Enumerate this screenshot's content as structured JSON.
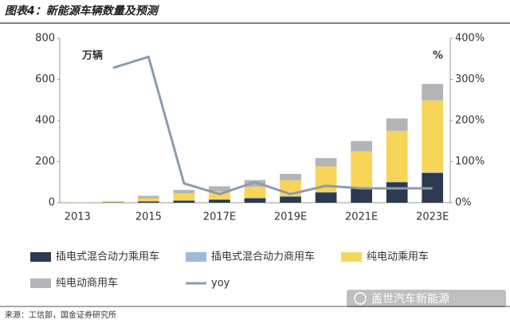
{
  "chart_data": {
    "type": "bar",
    "title": "图表4：新能源车辆数量及预测",
    "y_unit": "万辆",
    "y2_unit": "%",
    "source": "来源：工信部，国金证券研究所",
    "watermark": "盖世汽车新能源",
    "categories": [
      "2013",
      null,
      "2015",
      null,
      "2017E",
      null,
      "2019E",
      null,
      "2021E",
      null,
      "2023E"
    ],
    "stacked": true,
    "series": [
      {
        "name": "插电式混合动力乘用车",
        "color": "#2b3a4e",
        "values": [
          0.4,
          1.5,
          6,
          10,
          15,
          22,
          30,
          50,
          70,
          100,
          145
        ]
      },
      {
        "name": "插电式混合动力商用车",
        "color": "#9bbbd9",
        "values": [
          0.1,
          0.3,
          0.5,
          0.5,
          1,
          1,
          1,
          2,
          2,
          2,
          3
        ]
      },
      {
        "name": "纯电动乘用车",
        "color": "#f7d559",
        "values": [
          1.0,
          4.5,
          15,
          35,
          40,
          55,
          78,
          125,
          178,
          248,
          350
        ]
      },
      {
        "name": "纯电动商用车",
        "color": "#b3b3b8",
        "values": [
          0.2,
          0.7,
          12,
          16.5,
          24,
          32,
          31,
          40,
          50,
          60,
          80
        ]
      },
      {
        "name": "yoy",
        "color": "#8d9bb0",
        "type": "line",
        "axis": "y2",
        "values": [
          null,
          328,
          355,
          47,
          21,
          50,
          21,
          41,
          35,
          35,
          35
        ]
      }
    ],
    "ylim": [
      0,
      800
    ],
    "yticks": [
      0,
      200,
      400,
      600,
      800
    ],
    "y2lim": [
      0,
      400
    ],
    "y2ticks": [
      {
        "value": 0,
        "label": "0%"
      },
      {
        "value": 100,
        "label": "100%"
      },
      {
        "value": 200,
        "label": "200%"
      },
      {
        "value": 300,
        "label": "300%"
      },
      {
        "value": 400,
        "label": "400%"
      }
    ]
  }
}
